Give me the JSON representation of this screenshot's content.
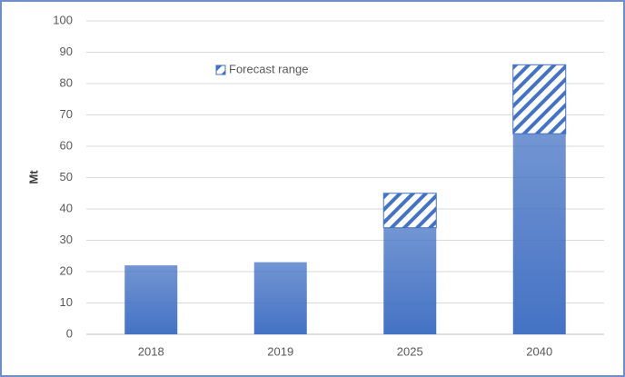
{
  "chart_data": {
    "type": "bar",
    "stacked": true,
    "y_label": "Mt",
    "categories": [
      "2018",
      "2019",
      "2025",
      "2040"
    ],
    "series": [
      {
        "color": "#4472c4",
        "values": [
          22,
          23,
          34,
          64
        ]
      },
      {
        "name": "Forecast range",
        "color": "#4472c4",
        "pattern": "hatch",
        "values": [
          null,
          null,
          11,
          22
        ]
      }
    ],
    "ylim": [
      0,
      100
    ],
    "yticks": [
      0,
      10,
      20,
      30,
      40,
      50,
      60,
      70,
      80,
      90,
      100
    ],
    "grid": true
  }
}
